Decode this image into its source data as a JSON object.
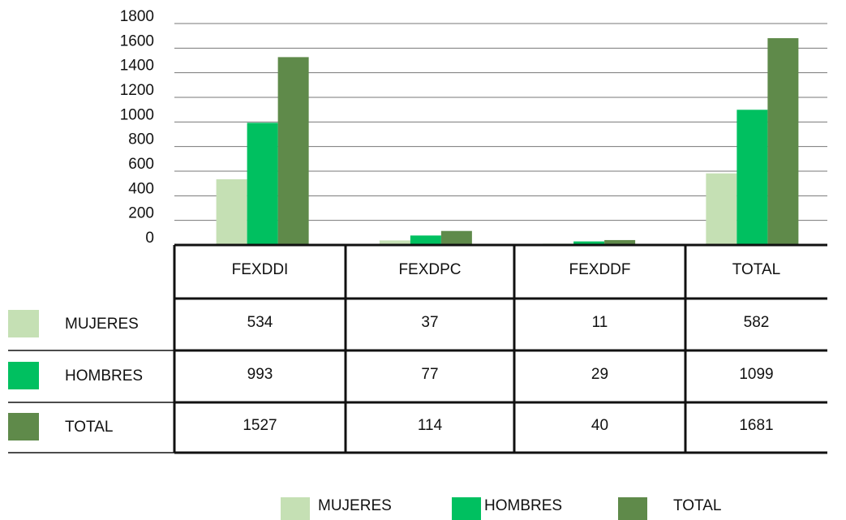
{
  "chart_data": {
    "type": "bar",
    "categories": [
      "FEXDDI",
      "FEXDPC",
      "FEXDDF",
      "TOTAL"
    ],
    "series": [
      {
        "name": "MUJERES",
        "color": "#c5e0b4",
        "values": [
          534,
          37,
          11,
          582
        ]
      },
      {
        "name": "HOMBRES",
        "color": "#00c060",
        "values": [
          993,
          77,
          29,
          1099
        ]
      },
      {
        "name": "TOTAL",
        "color": "#5f8a4a",
        "values": [
          1527,
          114,
          40,
          1681
        ]
      }
    ],
    "ylim": [
      0,
      1800
    ],
    "yticks": [
      0,
      200,
      400,
      600,
      800,
      1000,
      1200,
      1400,
      1600,
      1800
    ],
    "grid": true,
    "data_table": true,
    "legend": "bottom"
  }
}
